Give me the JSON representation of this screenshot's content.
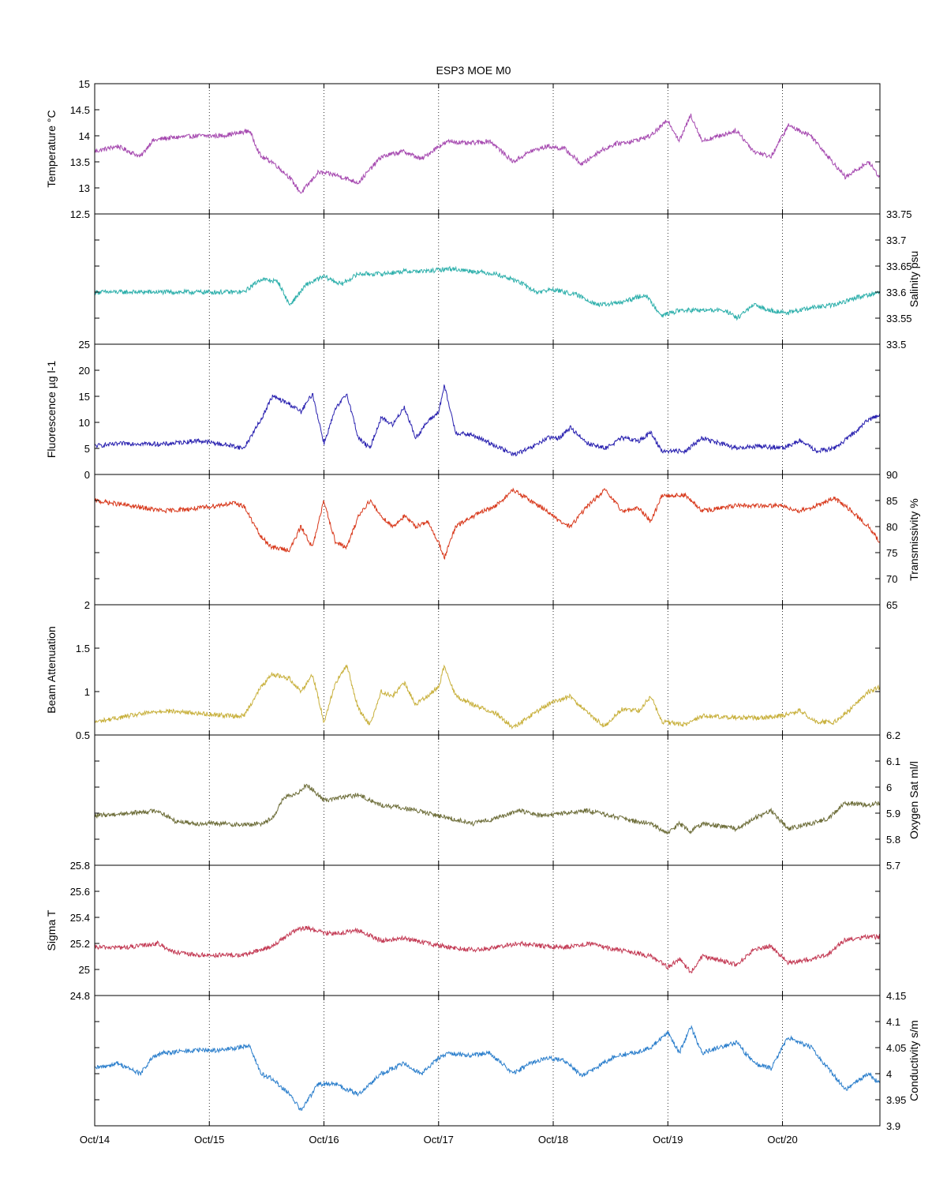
{
  "chart_data": {
    "type": "line",
    "title": "ESP3 MOE   M0",
    "xaxis": {
      "range": [
        0,
        6.85
      ],
      "ticks": [
        0,
        1,
        2,
        3,
        4,
        5,
        6
      ],
      "tick_labels": [
        "Oct/14",
        "Oct/15",
        "Oct/16",
        "Oct/17",
        "Oct/18",
        "Oct/19",
        "Oct/20"
      ],
      "grid": "dotted vertical at each tick"
    },
    "panels": [
      {
        "id": "temperature",
        "ylabel": "Temperature °C",
        "yaxis_side": "left",
        "ylim": [
          12.5,
          15
        ],
        "ticks": [
          12.5,
          13,
          13.5,
          14,
          14.5,
          15
        ],
        "tick_labels": [
          "12.5",
          "13",
          "13.5",
          "14",
          "14.5",
          "15"
        ],
        "color": "#a64ab0",
        "x": [
          0,
          0.2,
          0.4,
          0.5,
          0.6,
          0.9,
          1.1,
          1.25,
          1.35,
          1.45,
          1.55,
          1.7,
          1.8,
          1.95,
          2.1,
          2.3,
          2.5,
          2.7,
          2.85,
          3.0,
          3.1,
          3.25,
          3.45,
          3.65,
          3.8,
          3.95,
          4.1,
          4.25,
          4.4,
          4.55,
          4.7,
          4.85,
          5.0,
          5.1,
          5.2,
          5.3,
          5.6,
          5.75,
          5.9,
          6.05,
          6.25,
          6.4,
          6.55,
          6.75,
          6.85
        ],
        "y": [
          13.7,
          13.8,
          13.6,
          13.9,
          13.95,
          14.0,
          14.0,
          14.05,
          14.1,
          13.6,
          13.5,
          13.2,
          12.9,
          13.3,
          13.25,
          13.1,
          13.6,
          13.7,
          13.55,
          13.8,
          13.9,
          13.85,
          13.9,
          13.5,
          13.7,
          13.8,
          13.75,
          13.45,
          13.7,
          13.85,
          13.9,
          14.0,
          14.3,
          13.9,
          14.4,
          13.9,
          14.1,
          13.7,
          13.6,
          14.2,
          14.0,
          13.6,
          13.2,
          13.5,
          13.2
        ]
      },
      {
        "id": "salinity",
        "ylabel": "Salinity psu",
        "yaxis_side": "right",
        "ylim": [
          33.5,
          33.75
        ],
        "ticks": [
          33.5,
          33.55,
          33.6,
          33.65,
          33.7,
          33.75
        ],
        "tick_labels": [
          "33.5",
          "33.55",
          "33.6",
          "33.65",
          "33.7",
          "33.75"
        ],
        "color": "#2fb0ac",
        "x": [
          0,
          0.3,
          0.6,
          0.9,
          1.1,
          1.3,
          1.45,
          1.6,
          1.7,
          1.85,
          2.0,
          2.15,
          2.3,
          2.5,
          2.7,
          2.9,
          3.1,
          3.3,
          3.5,
          3.7,
          3.85,
          4.0,
          4.2,
          4.4,
          4.6,
          4.8,
          4.95,
          5.1,
          5.3,
          5.5,
          5.6,
          5.75,
          5.9,
          6.05,
          6.25,
          6.45,
          6.65,
          6.85
        ],
        "y": [
          33.6,
          33.6,
          33.6,
          33.6,
          33.6,
          33.6,
          33.625,
          33.62,
          33.575,
          33.615,
          33.63,
          33.615,
          33.635,
          33.635,
          33.64,
          33.64,
          33.645,
          33.64,
          33.635,
          33.62,
          33.6,
          33.605,
          33.595,
          33.575,
          33.58,
          33.595,
          33.555,
          33.565,
          33.565,
          33.565,
          33.55,
          33.575,
          33.565,
          33.56,
          33.57,
          33.575,
          33.59,
          33.6
        ]
      },
      {
        "id": "fluorescence",
        "ylabel": "Fluorescence µg l-1",
        "yaxis_side": "left",
        "ylim": [
          0,
          25
        ],
        "ticks": [
          0,
          5,
          10,
          15,
          20,
          25
        ],
        "tick_labels": [
          "0",
          "5",
          "10",
          "15",
          "20",
          "25"
        ],
        "color": "#2a22b0",
        "x": [
          0,
          0.3,
          0.6,
          0.9,
          1.2,
          1.3,
          1.45,
          1.55,
          1.7,
          1.8,
          1.9,
          2.0,
          2.1,
          2.2,
          2.3,
          2.4,
          2.5,
          2.6,
          2.7,
          2.8,
          2.9,
          3.0,
          3.05,
          3.15,
          3.3,
          3.5,
          3.65,
          3.8,
          3.95,
          4.05,
          4.15,
          4.3,
          4.45,
          4.6,
          4.75,
          4.85,
          4.95,
          5.15,
          5.3,
          5.6,
          5.8,
          6.0,
          6.15,
          6.3,
          6.45,
          6.6,
          6.75,
          6.85
        ],
        "y": [
          5.5,
          6.0,
          5.8,
          6.5,
          5.5,
          5.0,
          10.5,
          15.0,
          13.5,
          12.0,
          15.5,
          6.0,
          12.5,
          15.5,
          7.0,
          5.0,
          11.0,
          9.5,
          13.0,
          7.0,
          10.0,
          12.0,
          17.0,
          8.0,
          7.5,
          5.5,
          3.8,
          5.0,
          7.0,
          7.0,
          9.0,
          6.0,
          5.0,
          7.0,
          6.5,
          8.0,
          4.5,
          4.5,
          7.0,
          5.0,
          5.5,
          5.0,
          6.5,
          4.5,
          5.0,
          7.5,
          10.5,
          11.5
        ]
      },
      {
        "id": "transmissivity",
        "ylabel": "Transmissivity %",
        "yaxis_side": "right",
        "ylim": [
          65,
          90
        ],
        "ticks": [
          65,
          70,
          75,
          80,
          85,
          90
        ],
        "tick_labels": [
          "65",
          "70",
          "75",
          "80",
          "85",
          "90"
        ],
        "color": "#d8391c",
        "x": [
          0,
          0.3,
          0.6,
          0.9,
          1.2,
          1.3,
          1.45,
          1.55,
          1.7,
          1.8,
          1.9,
          2.0,
          2.1,
          2.2,
          2.3,
          2.4,
          2.5,
          2.6,
          2.7,
          2.8,
          2.9,
          3.0,
          3.05,
          3.15,
          3.3,
          3.5,
          3.65,
          3.8,
          3.95,
          4.05,
          4.15,
          4.3,
          4.45,
          4.6,
          4.75,
          4.85,
          4.95,
          5.15,
          5.3,
          5.6,
          5.8,
          6.0,
          6.15,
          6.3,
          6.45,
          6.6,
          6.75,
          6.85
        ],
        "y": [
          85.0,
          84.0,
          83.0,
          83.5,
          84.5,
          84.0,
          78.0,
          76.0,
          75.5,
          80.0,
          76.0,
          85.0,
          77.0,
          76.0,
          82.0,
          85.0,
          82.0,
          80.0,
          82.0,
          80.0,
          81.0,
          77.0,
          74.0,
          80.0,
          82.0,
          84.0,
          87.0,
          85.0,
          83.0,
          81.0,
          80.0,
          84.0,
          87.0,
          83.0,
          83.5,
          81.0,
          86.0,
          86.0,
          83.0,
          84.0,
          84.0,
          84.0,
          83.0,
          84.0,
          85.5,
          83.0,
          80.0,
          77.0
        ]
      },
      {
        "id": "beam-attenuation",
        "ylabel": "Beam Attenuation",
        "yaxis_side": "left",
        "ylim": [
          0.5,
          2
        ],
        "ticks": [
          0.5,
          1,
          1.5,
          2
        ],
        "tick_labels": [
          "0.5",
          "1",
          "1.5",
          "2"
        ],
        "color": "#c8b03c",
        "x": [
          0,
          0.3,
          0.6,
          0.9,
          1.2,
          1.3,
          1.45,
          1.55,
          1.7,
          1.8,
          1.9,
          2.0,
          2.1,
          2.2,
          2.3,
          2.4,
          2.5,
          2.6,
          2.7,
          2.8,
          2.9,
          3.0,
          3.05,
          3.15,
          3.3,
          3.5,
          3.65,
          3.8,
          3.95,
          4.05,
          4.15,
          4.3,
          4.45,
          4.6,
          4.75,
          4.85,
          4.95,
          5.15,
          5.3,
          5.6,
          5.8,
          6.0,
          6.15,
          6.3,
          6.45,
          6.6,
          6.75,
          6.85
        ],
        "y": [
          0.65,
          0.72,
          0.78,
          0.75,
          0.72,
          0.72,
          1.05,
          1.2,
          1.15,
          1.0,
          1.2,
          0.65,
          1.1,
          1.3,
          0.8,
          0.62,
          1.0,
          0.95,
          1.1,
          0.85,
          0.95,
          1.05,
          1.3,
          0.95,
          0.85,
          0.75,
          0.58,
          0.72,
          0.85,
          0.9,
          0.95,
          0.75,
          0.6,
          0.8,
          0.78,
          0.95,
          0.65,
          0.62,
          0.72,
          0.7,
          0.7,
          0.72,
          0.78,
          0.65,
          0.65,
          0.8,
          1.0,
          1.05
        ]
      },
      {
        "id": "oxygen",
        "ylabel": "Oxygen Sat ml/l",
        "yaxis_side": "right",
        "ylim": [
          5.7,
          6.2
        ],
        "ticks": [
          5.7,
          5.8,
          5.9,
          6.0,
          6.1,
          6.2
        ],
        "tick_labels": [
          "5.7",
          "5.8",
          "5.9",
          "6",
          "6.1",
          "6.2"
        ],
        "color": "#6e6e3a",
        "x": [
          0,
          0.3,
          0.55,
          0.7,
          0.9,
          1.1,
          1.3,
          1.45,
          1.55,
          1.65,
          1.75,
          1.85,
          2.0,
          2.15,
          2.3,
          2.5,
          2.7,
          2.9,
          3.1,
          3.3,
          3.5,
          3.7,
          3.9,
          4.1,
          4.3,
          4.5,
          4.7,
          4.85,
          5.0,
          5.1,
          5.2,
          5.3,
          5.6,
          5.75,
          5.9,
          6.05,
          6.25,
          6.4,
          6.55,
          6.75,
          6.85
        ],
        "y": [
          5.89,
          5.9,
          5.91,
          5.87,
          5.86,
          5.86,
          5.855,
          5.86,
          5.88,
          5.96,
          5.97,
          6.01,
          5.95,
          5.96,
          5.97,
          5.93,
          5.92,
          5.9,
          5.88,
          5.86,
          5.88,
          5.91,
          5.89,
          5.9,
          5.91,
          5.89,
          5.87,
          5.86,
          5.82,
          5.86,
          5.83,
          5.86,
          5.84,
          5.88,
          5.91,
          5.84,
          5.86,
          5.88,
          5.94,
          5.93,
          5.94
        ]
      },
      {
        "id": "sigma-t",
        "ylabel": "Sigma T",
        "yaxis_side": "left",
        "ylim": [
          24.8,
          25.8
        ],
        "ticks": [
          24.8,
          25,
          25.2,
          25.4,
          25.6,
          25.8
        ],
        "tick_labels": [
          "24.8",
          "25",
          "25.2",
          "25.4",
          "25.6",
          "25.8"
        ],
        "color": "#c33a54",
        "x": [
          0,
          0.3,
          0.55,
          0.7,
          0.9,
          1.1,
          1.3,
          1.45,
          1.55,
          1.65,
          1.75,
          1.85,
          2.0,
          2.15,
          2.3,
          2.5,
          2.7,
          2.9,
          3.1,
          3.3,
          3.5,
          3.7,
          3.9,
          4.1,
          4.3,
          4.5,
          4.7,
          4.85,
          5.0,
          5.1,
          5.2,
          5.3,
          5.6,
          5.75,
          5.9,
          6.05,
          6.25,
          6.4,
          6.55,
          6.75,
          6.85
        ],
        "y": [
          25.17,
          25.17,
          25.2,
          25.13,
          25.11,
          25.11,
          25.11,
          25.15,
          25.18,
          25.24,
          25.3,
          25.32,
          25.28,
          25.28,
          25.3,
          25.22,
          25.24,
          25.2,
          25.17,
          25.15,
          25.17,
          25.2,
          25.18,
          25.17,
          25.2,
          25.16,
          25.13,
          25.1,
          25.02,
          25.08,
          24.98,
          25.1,
          25.04,
          25.15,
          25.18,
          25.05,
          25.08,
          25.12,
          25.23,
          25.25,
          25.25
        ]
      },
      {
        "id": "conductivity",
        "ylabel": "Conductivity s/m",
        "yaxis_side": "right",
        "ylim": [
          3.9,
          4.15
        ],
        "ticks": [
          3.9,
          3.95,
          4.0,
          4.05,
          4.1,
          4.15
        ],
        "tick_labels": [
          "3.9",
          "3.95",
          "4",
          "4.05",
          "4.1",
          "4.15"
        ],
        "color": "#2c7fcc",
        "x": [
          0,
          0.2,
          0.4,
          0.5,
          0.6,
          0.9,
          1.1,
          1.25,
          1.35,
          1.45,
          1.55,
          1.7,
          1.8,
          1.95,
          2.1,
          2.3,
          2.5,
          2.7,
          2.85,
          3.0,
          3.1,
          3.25,
          3.45,
          3.65,
          3.8,
          3.95,
          4.1,
          4.25,
          4.4,
          4.55,
          4.7,
          4.85,
          5.0,
          5.1,
          5.2,
          5.3,
          5.6,
          5.75,
          5.9,
          6.05,
          6.25,
          6.4,
          6.55,
          6.75,
          6.85
        ],
        "y": [
          4.01,
          4.02,
          4.0,
          4.03,
          4.04,
          4.045,
          4.045,
          4.05,
          4.055,
          4.0,
          3.99,
          3.96,
          3.93,
          3.98,
          3.98,
          3.96,
          4.0,
          4.02,
          4.0,
          4.03,
          4.04,
          4.035,
          4.04,
          4.0,
          4.02,
          4.03,
          4.025,
          3.995,
          4.015,
          4.035,
          4.04,
          4.05,
          4.08,
          4.04,
          4.09,
          4.04,
          4.06,
          4.02,
          4.01,
          4.07,
          4.05,
          4.01,
          3.97,
          4.0,
          3.98
        ]
      }
    ]
  }
}
